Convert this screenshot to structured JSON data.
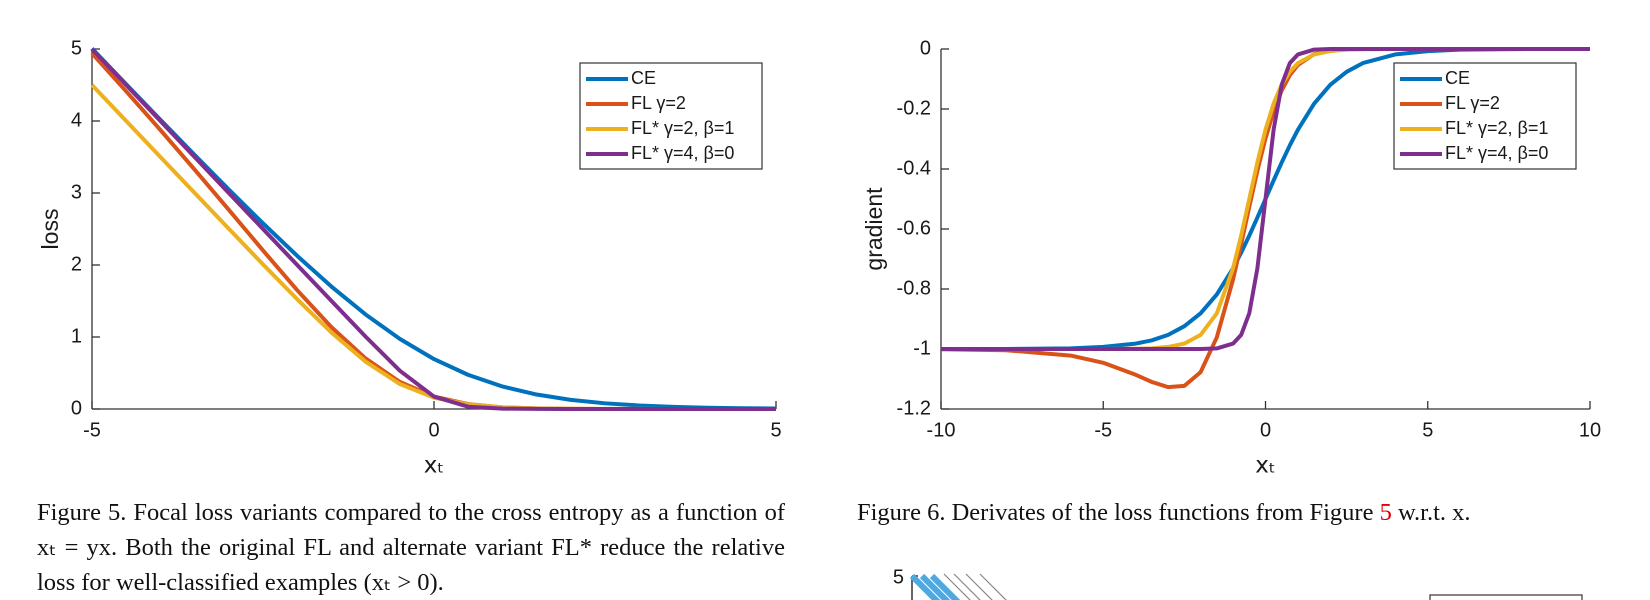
{
  "chart_data": [
    {
      "type": "line",
      "x_label": "xₜ",
      "y_label": "loss",
      "x": [
        -5,
        -4.5,
        -4,
        -3.5,
        -3,
        -2.5,
        -2,
        -1.5,
        -1,
        -0.5,
        0,
        0.5,
        1,
        1.5,
        2,
        2.5,
        3,
        3.5,
        4,
        4.5,
        5
      ],
      "series": [
        {
          "name": "CE",
          "color": "#0072bd",
          "values": [
            5.007,
            4.511,
            4.018,
            3.53,
            3.049,
            2.579,
            2.127,
            1.701,
            1.313,
            0.974,
            0.693,
            0.474,
            0.313,
            0.201,
            0.127,
            0.079,
            0.049,
            0.03,
            0.018,
            0.011,
            0.007
          ]
        },
        {
          "name": "FL γ=2",
          "color": "#d95319",
          "values": [
            4.94,
            4.412,
            3.875,
            3.326,
            2.766,
            2.202,
            1.65,
            1.137,
            0.702,
            0.377,
            0.173,
            0.068,
            0.023,
            0.007,
            0.002,
            0,
            0,
            0,
            0,
            0,
            0
          ]
        },
        {
          "name": "FL* γ=2, β=1",
          "color": "#edb120",
          "values": [
            4.5,
            4.0,
            3.5,
            3.001,
            2.503,
            2.009,
            1.524,
            1.063,
            0.657,
            0.347,
            0.157,
            0.063,
            0.024,
            0.009,
            0.003,
            0.001,
            0.001,
            0,
            0,
            0,
            0
          ]
        },
        {
          "name": "FL* γ=4, β=0",
          "color": "#7e2f8e",
          "values": [
            5.0,
            4.5,
            4.0,
            3.5,
            3.0,
            2.5,
            2.0,
            1.501,
            1.005,
            0.532,
            0.173,
            0.032,
            0.005,
            0.001,
            0,
            0,
            0,
            0,
            0,
            0,
            0
          ]
        }
      ],
      "xlim": [
        -5,
        5
      ],
      "xticks": [
        -5,
        0,
        5
      ],
      "ylim": [
        0,
        5
      ],
      "yticks": [
        0,
        1,
        2,
        3,
        4,
        5
      ],
      "legend": "northeast"
    },
    {
      "type": "line",
      "x_label": "xₜ",
      "y_label": "gradient",
      "x": [
        -10,
        -8,
        -6,
        -5,
        -4,
        -3.5,
        -3,
        -2.5,
        -2,
        -1.5,
        -1,
        -0.75,
        -0.5,
        -0.25,
        0,
        0.25,
        0.5,
        0.75,
        1,
        1.5,
        2,
        2.5,
        3,
        4,
        5,
        6,
        8,
        10
      ],
      "series": [
        {
          "name": "CE",
          "color": "#0072bd",
          "values": [
            -1,
            -1,
            -0.998,
            -0.993,
            -0.982,
            -0.971,
            -0.953,
            -0.924,
            -0.881,
            -0.818,
            -0.731,
            -0.679,
            -0.622,
            -0.562,
            -0.5,
            -0.438,
            -0.378,
            -0.321,
            -0.269,
            -0.182,
            -0.119,
            -0.076,
            -0.047,
            -0.018,
            -0.007,
            -0.002,
            0,
            0
          ]
        },
        {
          "name": "FL γ=2",
          "color": "#d95319",
          "values": [
            -1.001,
            -1.004,
            -1.022,
            -1.046,
            -1.086,
            -1.11,
            -1.127,
            -1.123,
            -1.077,
            -0.961,
            -0.768,
            -0.65,
            -0.526,
            -0.406,
            -0.298,
            -0.208,
            -0.138,
            -0.087,
            -0.053,
            -0.017,
            -0.005,
            -0.001,
            0,
            0,
            0,
            0,
            0,
            0
          ]
        },
        {
          "name": "FL* γ=2, β=1",
          "color": "#edb120",
          "values": [
            -1,
            -1,
            -1,
            -1,
            -0.999,
            -0.998,
            -0.993,
            -0.982,
            -0.953,
            -0.881,
            -0.731,
            -0.622,
            -0.5,
            -0.378,
            -0.269,
            -0.182,
            -0.119,
            -0.076,
            -0.047,
            -0.018,
            -0.007,
            -0.002,
            -0.001,
            0,
            0,
            0,
            0,
            0
          ]
        },
        {
          "name": "FL* γ=4, β=0",
          "color": "#7e2f8e",
          "values": [
            -1,
            -1,
            -1,
            -1,
            -1,
            -1,
            -1,
            -1,
            -1,
            -0.998,
            -0.982,
            -0.953,
            -0.881,
            -0.731,
            -0.5,
            -0.269,
            -0.119,
            -0.047,
            -0.018,
            -0.002,
            0,
            0,
            0,
            0,
            0,
            0,
            0,
            0
          ]
        }
      ],
      "xlim": [
        -10,
        10
      ],
      "xticks": [
        -10,
        -5,
        0,
        5,
        10
      ],
      "ylim": [
        -1.2,
        0
      ],
      "yticks": [
        -1.2,
        -1,
        -0.8,
        -0.6,
        -0.4,
        -0.2,
        0
      ],
      "legend": "northeast"
    }
  ],
  "captions": {
    "figure5": "Figure 5. Focal loss variants compared to the cross entropy as a function of xₜ = yx. Both the original FL and alternate variant FL* reduce the relative loss for well-classified examples (xₜ > 0).",
    "figure6": [
      "Figure 6. Derivates of the loss functions from Figure ",
      "5",
      " w.r.t. x."
    ]
  },
  "partial_figure": {
    "ytick": 5
  }
}
